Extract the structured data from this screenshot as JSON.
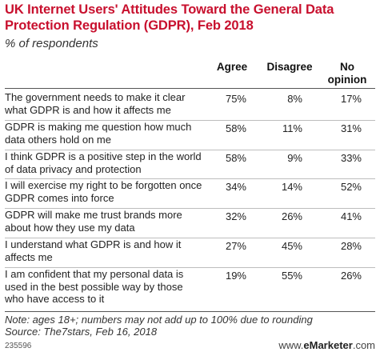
{
  "chart_data": {
    "type": "table",
    "title": "UK Internet Users' Attitudes Toward the General Data Protection Regulation (GDPR), Feb 2018",
    "subtitle": "% of respondents",
    "columns": [
      "Agree",
      "Disagree",
      "No opinion"
    ],
    "rows": [
      {
        "label": "The government needs to make it clear what GDPR is and how it affects me",
        "values": [
          "75%",
          "8%",
          "17%"
        ]
      },
      {
        "label": "GDPR is making me question how much data others hold on me",
        "values": [
          "58%",
          "11%",
          "31%"
        ]
      },
      {
        "label": "I think GDPR is a positive step in the world of data privacy and protection",
        "values": [
          "58%",
          "9%",
          "33%"
        ]
      },
      {
        "label": "I will exercise my right to be forgotten once GDPR comes into force",
        "values": [
          "34%",
          "14%",
          "52%"
        ]
      },
      {
        "label": "GDPR will make me trust brands more about how they use my data",
        "values": [
          "32%",
          "26%",
          "41%"
        ]
      },
      {
        "label": "I understand what GDPR is and how it affects me",
        "values": [
          "27%",
          "45%",
          "28%"
        ]
      },
      {
        "label": "I am confident that my personal data is used in the best possible way by those who have access to it",
        "values": [
          "19%",
          "55%",
          "26%"
        ]
      }
    ],
    "note": "Note: ages 18+; numbers may not add up to 100% due to rounding",
    "source": "Source: The7stars, Feb 16, 2018",
    "chart_id": "235596",
    "brand": {
      "prefix": "www.",
      "name": "eMarketer",
      "suffix": ".com"
    }
  }
}
